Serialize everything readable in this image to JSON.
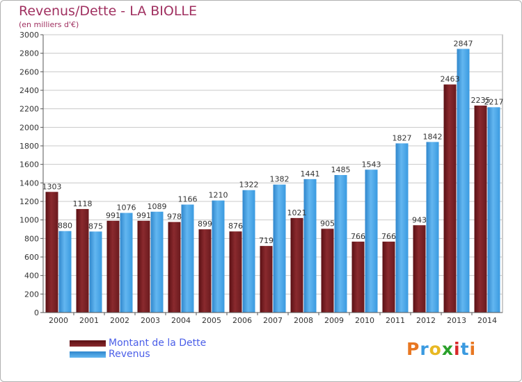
{
  "title": "Revenus/Dette - LA BIOLLE",
  "subtitle": "(en milliers d'€)",
  "logo_text": "Proxiti",
  "colors": {
    "dette": "#6e1a1e",
    "revenus": "#3a9ae0",
    "title": "#a03060",
    "legend_text": "#4a5ee8"
  },
  "chart_data": {
    "type": "bar",
    "categories": [
      "2000",
      "2001",
      "2002",
      "2003",
      "2004",
      "2005",
      "2006",
      "2007",
      "2008",
      "2009",
      "2010",
      "2011",
      "2012",
      "2013",
      "2014"
    ],
    "series": [
      {
        "name": "Montant de la Dette",
        "values": [
          1303,
          1118,
          991,
          991,
          978,
          899,
          876,
          719,
          1021,
          905,
          766,
          766,
          943,
          2463,
          2235
        ],
        "labels": [
          "1303",
          "1118",
          "991",
          "991",
          "978",
          "899",
          "876",
          "719",
          "1021",
          "905",
          "766",
          "766",
          "943",
          "2463",
          "2235"
        ]
      },
      {
        "name": "Revenus",
        "values": [
          880,
          875,
          1076,
          1089,
          1166,
          1210,
          1322,
          1382,
          1441,
          1485,
          1543,
          1827,
          1842,
          2847,
          2217
        ],
        "labels": [
          "880",
          "875",
          "1076",
          "1089",
          "1166",
          "1210",
          "1322",
          "1382",
          "1441",
          "1485",
          "1543",
          "1827",
          "1842",
          "2847",
          "2217"
        ]
      }
    ],
    "yticks": [
      0,
      200,
      400,
      600,
      800,
      1000,
      1200,
      1400,
      1600,
      1800,
      2000,
      2200,
      2400,
      2600,
      2800,
      3000
    ],
    "ylim": [
      0,
      3000
    ],
    "grid": true,
    "legend": "bottom-left"
  }
}
